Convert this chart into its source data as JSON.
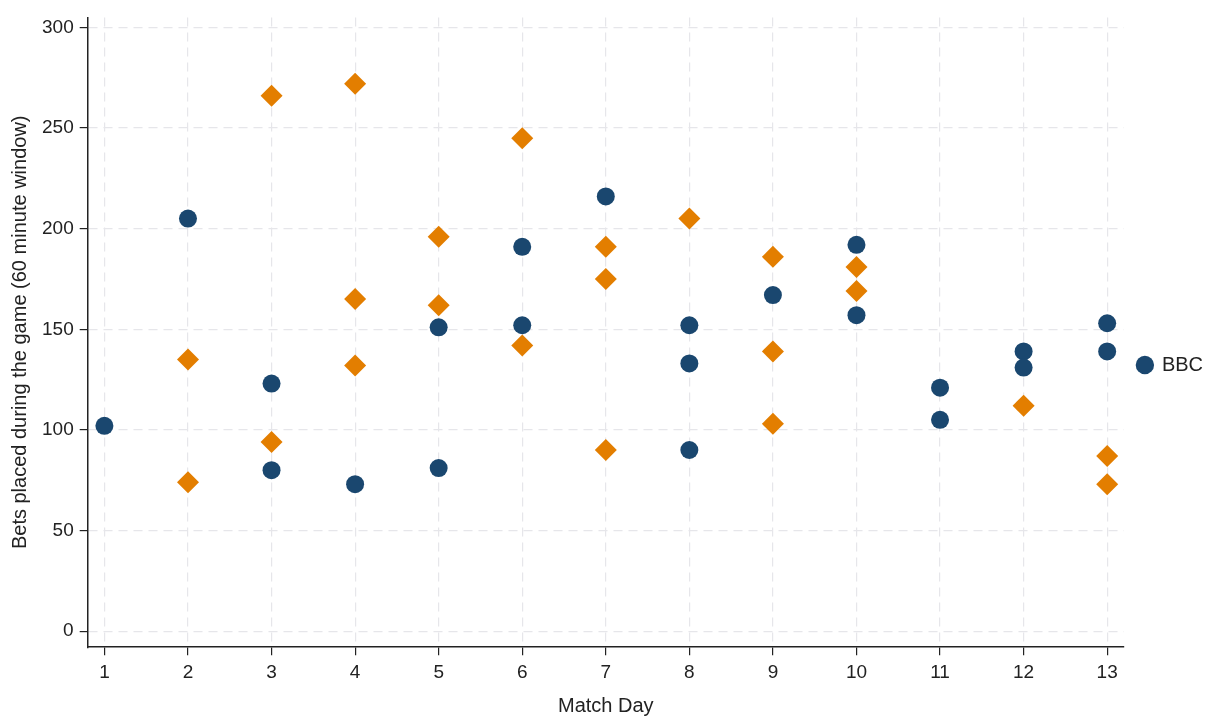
{
  "chart_data": {
    "type": "scatter",
    "xlabel": "Match Day",
    "ylabel": "Bets placed during the game (60 minute window)",
    "xlim": [
      0.8,
      13.2
    ],
    "xticks": [
      1,
      2,
      3,
      4,
      5,
      6,
      7,
      8,
      9,
      10,
      11,
      12,
      13
    ],
    "ylim": [
      -8,
      305
    ],
    "yticks": [
      0,
      50,
      100,
      150,
      200,
      250,
      300
    ],
    "grid": true,
    "legend": "right",
    "series": [
      {
        "name": "BBC",
        "color": "#1a476f",
        "marker": "circle",
        "x": [
          1,
          2,
          3,
          3,
          4,
          5,
          5,
          6,
          6,
          7,
          8,
          8,
          8,
          9,
          10,
          10,
          11,
          11,
          12,
          12,
          13,
          13
        ],
        "values": [
          102,
          205,
          123,
          80,
          73,
          151,
          81,
          191,
          152,
          216,
          152,
          133,
          90,
          167,
          192,
          157,
          121,
          105,
          139,
          131,
          153,
          139
        ]
      },
      {
        "color": "#e37e00",
        "marker": "diamond",
        "x": [
          2,
          2,
          3,
          3,
          4,
          4,
          4,
          5,
          5,
          6,
          6,
          7,
          7,
          7,
          8,
          9,
          9,
          9,
          10,
          10,
          12,
          13,
          13
        ],
        "values": [
          135,
          74,
          266,
          94,
          272,
          165,
          132,
          196,
          162,
          245,
          142,
          191,
          175,
          90,
          205,
          186,
          139,
          103,
          181,
          169,
          112,
          87,
          73
        ]
      }
    ]
  }
}
